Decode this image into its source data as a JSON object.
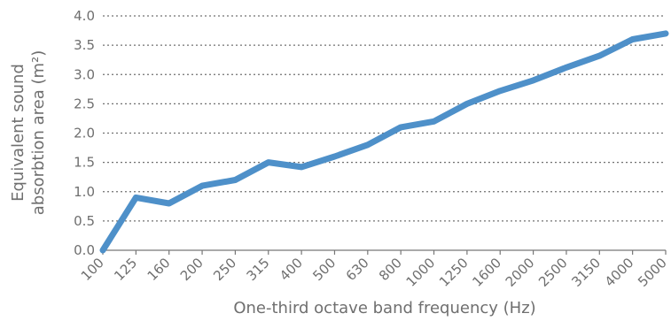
{
  "chart_data": {
    "type": "line",
    "categories": [
      "100",
      "125",
      "160",
      "200",
      "250",
      "315",
      "400",
      "500",
      "630",
      "800",
      "1000",
      "1250",
      "1600",
      "2000",
      "2500",
      "3150",
      "4000",
      "5000"
    ],
    "series": [
      {
        "values": [
          0.0,
          0.9,
          0.8,
          1.1,
          1.2,
          1.5,
          1.42,
          1.6,
          1.8,
          2.1,
          2.2,
          2.5,
          2.72,
          2.9,
          3.12,
          3.32,
          3.6,
          3.7
        ],
        "color": "#4e90c9"
      }
    ],
    "xlabel": "One-third octave band frequency (Hz)",
    "ylabel_line1": "Equivalent sound",
    "ylabel_line2": "absorbtion area (m²)",
    "ylim": [
      0.0,
      4.0
    ],
    "yticks": [
      "0.0",
      "0.5",
      "1.0",
      "1.5",
      "2.0",
      "2.5",
      "3.0",
      "3.5",
      "4.0"
    ],
    "grid": "horizontal dotted"
  }
}
